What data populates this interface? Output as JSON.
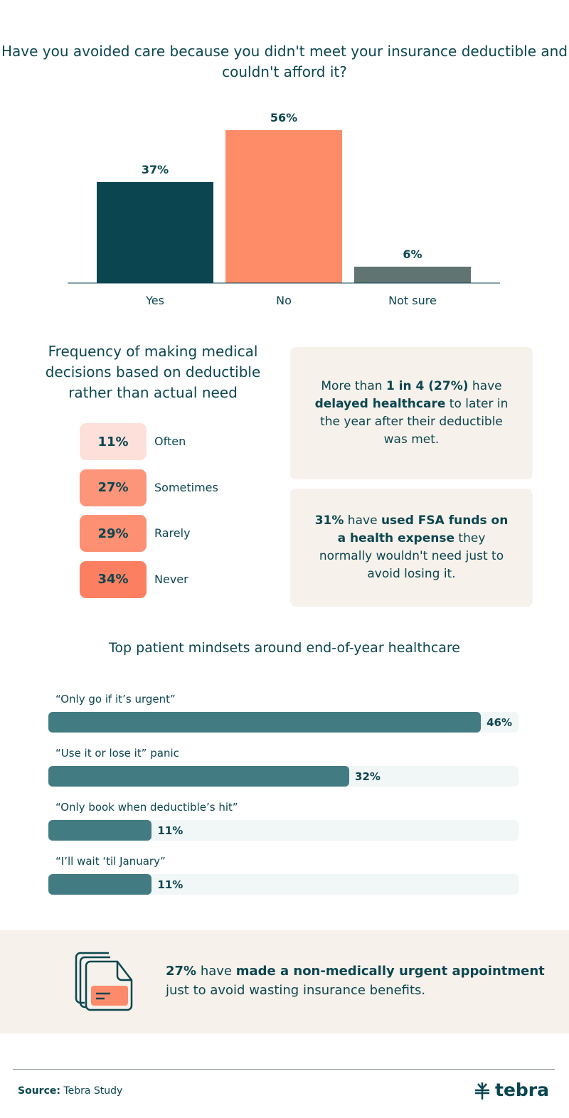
{
  "chart_data": [
    {
      "type": "bar",
      "title": "Have you avoided care because you didn't meet your insurance deductible and couldn't afford it?",
      "categories": [
        "Yes",
        "No",
        "Not sure"
      ],
      "values": [
        37,
        56,
        6
      ],
      "labels": [
        "37%",
        "56%",
        "6%"
      ],
      "colors": [
        "#0b4650",
        "#ff8c69",
        "#607472"
      ],
      "ylim": [
        0,
        56
      ]
    },
    {
      "type": "table",
      "title": "Frequency of making medical decisions based on deductible rather than actual need",
      "rows": [
        {
          "value": "11%",
          "label": "Often",
          "color": "#fde0d9"
        },
        {
          "value": "27%",
          "label": "Sometimes",
          "color": "#fd957a"
        },
        {
          "value": "29%",
          "label": "Rarely",
          "color": "#fd8f73"
        },
        {
          "value": "34%",
          "label": "Never",
          "color": "#fc7f61"
        }
      ]
    },
    {
      "type": "bar",
      "orientation": "horizontal",
      "title": "Top patient mindsets around end-of-year healthcare",
      "categories": [
        "“Only go if it’s urgent”",
        "“Use it or lose it” panic",
        "“Only book when deductible’s hit”",
        "“I’ll wait ‘til January”"
      ],
      "values": [
        46,
        32,
        11,
        11
      ],
      "labels": [
        "46%",
        "32%",
        "11%",
        "11%"
      ],
      "xlim": [
        0,
        50
      ],
      "color": "#427c82"
    }
  ],
  "cards": {
    "c1": {
      "pre": "More than ",
      "b1": "1 in 4 (27%)",
      "mid": " have ",
      "b2": "delayed healthcare",
      "post": " to later in the year after their deductible was met."
    },
    "c2": {
      "b1": "31%",
      "mid": " have ",
      "b2": "used FSA funds on a health expense",
      "post": " they normally wouldn't need just to avoid losing it."
    }
  },
  "banner": {
    "b1": "27%",
    "mid": " have ",
    "b2": "made a non-medically urgent appointment",
    "post": " just to avoid wasting insurance benefits.",
    "icon": "documents-icon"
  },
  "footer": {
    "source_label": "Source:",
    "source": " Tebra Study",
    "logo": "tebra"
  }
}
